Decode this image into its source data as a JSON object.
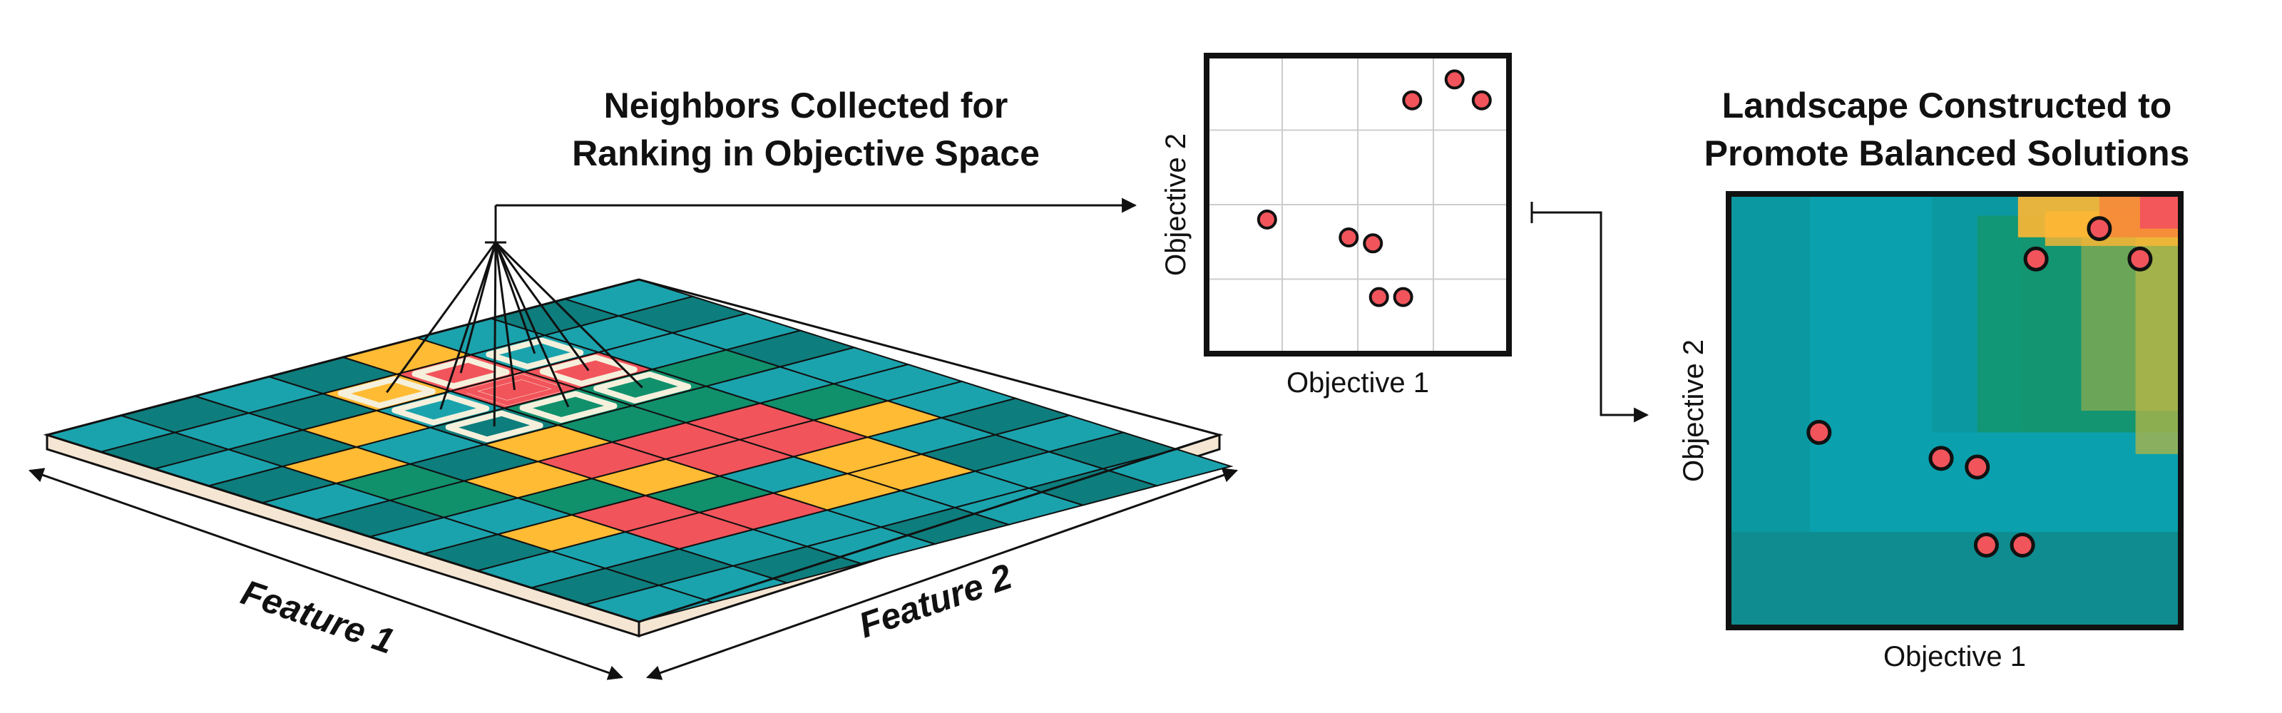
{
  "titles": {
    "neighbors": [
      "Neighbors Collected for",
      "Ranking in Objective Space"
    ],
    "landscape": [
      "Landscape Constructed to",
      "Promote Balanced Solutions"
    ]
  },
  "board": {
    "axis_labels": {
      "feature1": "Feature 1",
      "feature2": "Feature 2"
    },
    "palette": {
      "T": "#1ba3ad",
      "D": "#0e7d7d",
      "G": "#11906c",
      "Y": "#ffbb33",
      "R": "#f2545b"
    },
    "grid": [
      "TDTDTDTDTDT",
      "DTDYGGTYTDT",
      "TDYTDYGRRTD",
      "DYTDYRYGRTT",
      "YRRGGRRTYTD",
      "TTRGGRRYYTT",
      "DTTGTGYTDTD",
      "TDTDTTTDTDT"
    ],
    "highlighted_cells": [
      [
        1,
        3
      ],
      [
        2,
        3
      ],
      [
        3,
        3
      ],
      [
        1,
        4
      ],
      [
        2,
        4
      ],
      [
        3,
        4
      ],
      [
        1,
        5
      ],
      [
        2,
        5
      ],
      [
        3,
        5
      ]
    ],
    "focus_cell": [
      2,
      4
    ]
  },
  "scatter_small": {
    "xlabel": "Objective 1",
    "ylabel": "Objective 2",
    "points": [
      [
        0.2,
        0.45
      ],
      [
        0.47,
        0.39
      ],
      [
        0.55,
        0.37
      ],
      [
        0.57,
        0.19
      ],
      [
        0.65,
        0.19
      ],
      [
        0.68,
        0.85
      ],
      [
        0.82,
        0.92
      ],
      [
        0.91,
        0.85
      ]
    ]
  },
  "landscape": {
    "xlabel": "Objective 1",
    "ylabel": "Objective 2",
    "points": [
      [
        0.2,
        0.45
      ],
      [
        0.47,
        0.39
      ],
      [
        0.55,
        0.37
      ],
      [
        0.57,
        0.19
      ],
      [
        0.65,
        0.19
      ],
      [
        0.68,
        0.85
      ],
      [
        0.82,
        0.92
      ],
      [
        0.91,
        0.85
      ]
    ],
    "colors": {
      "base": "#0aa0ad",
      "dark": "#0e8a8c",
      "green": "#13956f",
      "yellow": "#ffb733",
      "orange": "#f58a3a",
      "red": "#f2545b",
      "olive": "#b5b545"
    }
  },
  "colors": {
    "point_fill": "#f2545b",
    "stroke": "#111111",
    "grid_line": "#cccccc",
    "outline": "#f5f0dc"
  }
}
